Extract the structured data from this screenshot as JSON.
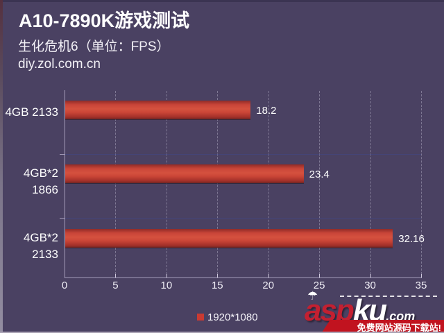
{
  "header": {
    "title": "A10-7890K游戏测试",
    "subtitle": "生化危机6（单位：FPS）",
    "site": "diy.zol.com.cn"
  },
  "chart_data": {
    "type": "bar",
    "orientation": "horizontal",
    "title": "A10-7890K游戏测试",
    "subtitle": "生化危机6（单位：FPS）",
    "unit": "FPS",
    "categories": [
      "4GB 2133",
      "4GB*2 1866",
      "4GB*2 2133"
    ],
    "category_lines": [
      [
        "4GB 2133"
      ],
      [
        "4GB*2",
        "1866"
      ],
      [
        "4GB*2",
        "2133"
      ]
    ],
    "series": [
      {
        "name": "1920*1080",
        "values": [
          18.2,
          23.4,
          32.16
        ]
      }
    ],
    "value_labels": [
      "18.2",
      "23.4",
      "32.16"
    ],
    "xlabel": "",
    "ylabel": "",
    "xlim": [
      0,
      35
    ],
    "xticks": [
      0,
      5,
      10,
      15,
      20,
      25,
      30,
      35
    ],
    "grid": "vertical-dashed",
    "legend_position": "bottom-center"
  },
  "legend": {
    "label": "1920*1080",
    "swatch_color": "#cb3a32"
  },
  "watermark": {
    "brand_part1": "asp",
    "brand_part2": "ku",
    "brand_suffix": ".com",
    "tagline": "免费网站源码下载站!"
  },
  "colors": {
    "background": "#4a4162",
    "bar_main": "#d5513f",
    "bar_edge_top": "#8f2b28",
    "bar_edge_bottom": "#702524",
    "axis": "#a59dba",
    "text": "#ffffff",
    "banner_red": "#c1131f",
    "brand_red": "#c32031"
  }
}
